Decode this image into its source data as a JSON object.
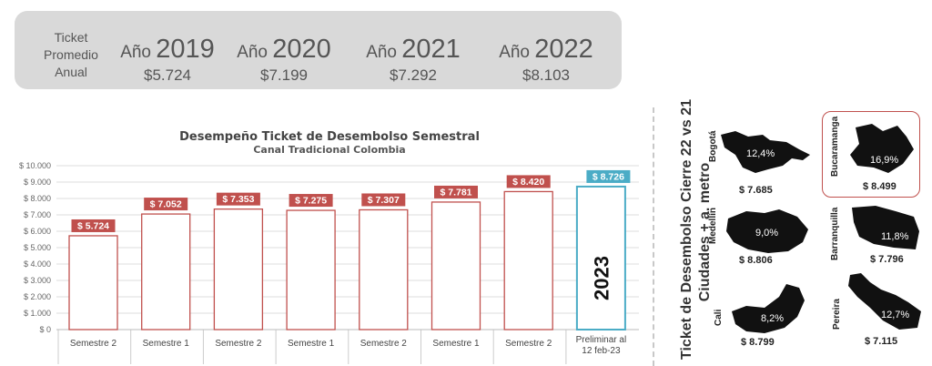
{
  "summary": {
    "label": "Ticket Promedio Anual",
    "years": [
      {
        "prefix": "Año",
        "year": "2019",
        "amount": "$5.724"
      },
      {
        "prefix": "Año",
        "year": "2020",
        "amount": "$7.199"
      },
      {
        "prefix": "Año",
        "year": "2021",
        "amount": "$7.292"
      },
      {
        "prefix": "Año",
        "year": "2022",
        "amount": "$8.103"
      }
    ]
  },
  "chart_data": {
    "type": "bar",
    "title": "Desempeño Ticket de Desembolso Semestral",
    "subtitle": "Canal Tradicional Colombia",
    "categories": [
      "Semestre 2",
      "Semestre 1",
      "Semestre 2",
      "Semestre 1",
      "Semestre 2",
      "Semestre 1",
      "Semestre 2",
      "Preliminar al 12 feb-23"
    ],
    "values": [
      5724,
      7052,
      7353,
      7275,
      7307,
      7781,
      8420,
      8726
    ],
    "value_labels": [
      "$ 5.724",
      "$ 7.052",
      "$ 7.353",
      "$ 7.275",
      "$ 7.307",
      "$ 7.781",
      "$ 8.420",
      "$ 8.726"
    ],
    "ylim": [
      0,
      10000
    ],
    "y_ticks": [
      "$ 0",
      "$ 1.000",
      "$ 2.000",
      "$ 3.000",
      "$ 4.000",
      "$ 5.000",
      "$ 6.000",
      "$ 7.000",
      "$ 8.000",
      "$ 9.000",
      "$ 10.000"
    ],
    "bar_annotation": "2023",
    "colors": {
      "bar_border": "#c0504d",
      "label_bg": "#c0504d",
      "highlight_border": "#4bacc6",
      "highlight_label_bg": "#4bacc6",
      "grid": "#dddddd"
    },
    "grid": true,
    "legend": "none"
  },
  "cities_panel": {
    "title_line1": "Ticket de Desembolso Cierre 22 vs 21",
    "title_line2": "Ciudades + a. metro",
    "cities": [
      {
        "name": "Bogotá",
        "pct": "12,4%",
        "value": "$ 7.685",
        "highlighted": false
      },
      {
        "name": "Bucaramanga",
        "pct": "16,9%",
        "value": "$ 8.499",
        "highlighted": true
      },
      {
        "name": "Medellín",
        "pct": "9,0%",
        "value": "$ 8.806",
        "highlighted": false
      },
      {
        "name": "Barranquilla",
        "pct": "11,8%",
        "value": "$ 7.796",
        "highlighted": false
      },
      {
        "name": "Cali",
        "pct": "8,2%",
        "value": "$ 8.799",
        "highlighted": false
      },
      {
        "name": "Pereira",
        "pct": "12,7%",
        "value": "$ 7.115",
        "highlighted": false
      }
    ]
  }
}
